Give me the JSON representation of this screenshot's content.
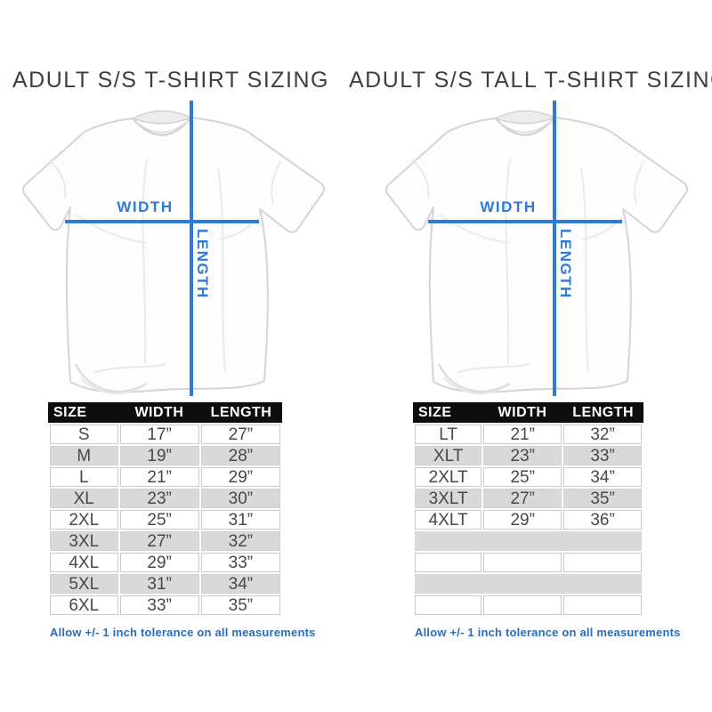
{
  "colors": {
    "background": "#ffffff",
    "title_text": "#3e3e42",
    "measure_blue": "#2e7ad6",
    "note_blue": "#2c6cb8",
    "table_header_bg": "#0d0d0d",
    "table_header_text": "#ffffff",
    "row_gray": "#d9d9d9",
    "cell_border": "#c9c9c9",
    "cell_text": "#48484b"
  },
  "panels": [
    {
      "title": "ADULT S/S T-SHIRT SIZING",
      "diagram": {
        "width_label": "WIDTH",
        "length_label": "LENGTH"
      },
      "table": {
        "headers": [
          "SIZE",
          "WIDTH",
          "LENGTH"
        ],
        "rows": [
          [
            "S",
            "17”",
            "27”"
          ],
          [
            "M",
            "19”",
            "28”"
          ],
          [
            "L",
            "21”",
            "29”"
          ],
          [
            "XL",
            "23”",
            "30”"
          ],
          [
            "2XL",
            "25”",
            "31”"
          ],
          [
            "3XL",
            "27”",
            "32”"
          ],
          [
            "4XL",
            "29”",
            "33”"
          ],
          [
            "5XL",
            "31”",
            "34”"
          ],
          [
            "6XL",
            "33”",
            "35”"
          ]
        ]
      },
      "note": "Allow +/- 1 inch tolerance on all measurements"
    },
    {
      "title": "ADULT S/S TALL T-SHIRT SIZING",
      "diagram": {
        "width_label": "WIDTH",
        "length_label": "LENGTH"
      },
      "table": {
        "headers": [
          "SIZE",
          "WIDTH",
          "LENGTH"
        ],
        "rows": [
          [
            "LT",
            "21”",
            "32”"
          ],
          [
            "XLT",
            "23”",
            "33”"
          ],
          [
            "2XLT",
            "25”",
            "34”"
          ],
          [
            "3XLT",
            "27”",
            "35”"
          ],
          [
            "4XLT",
            "29”",
            "36”"
          ],
          [],
          [],
          [],
          []
        ]
      },
      "note": "Allow +/- 1 inch tolerance on all measurements"
    }
  ]
}
